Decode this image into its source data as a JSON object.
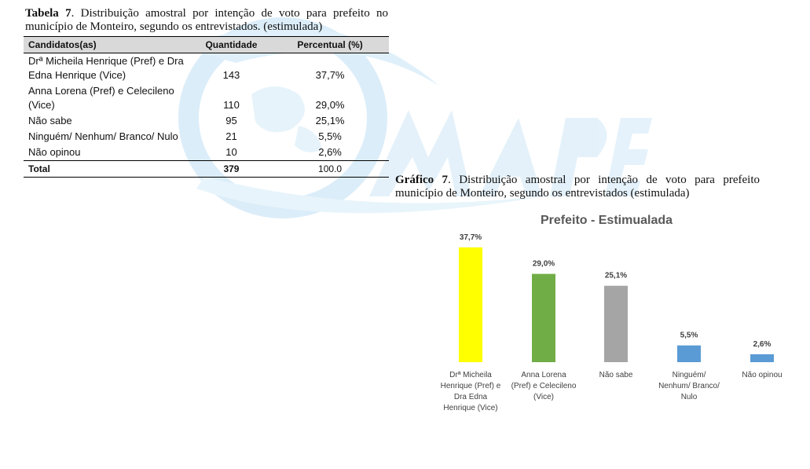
{
  "table": {
    "caption_bold": "Tabela 7",
    "caption_text": ". Distribuição amostral por intenção de voto para prefeito no município de Monteiro, segundo os entrevistados. (estimulada)",
    "headers": [
      "Candidatos(as)",
      "Quantidade",
      "Percentual (%)"
    ],
    "rows": [
      {
        "candidate": [
          "Drª Micheila Henrique (Pref) e Dra",
          "Edna Henrique (Vice)"
        ],
        "quantity": "143",
        "percent": "37,7%"
      },
      {
        "candidate": [
          "Anna Lorena (Pref) e Celecileno",
          "(Vice)"
        ],
        "quantity": "110",
        "percent": "29,0%"
      },
      {
        "candidate": [
          "Não sabe"
        ],
        "quantity": "95",
        "percent": "25,1%"
      },
      {
        "candidate": [
          "Ninguém/ Nenhum/ Branco/ Nulo"
        ],
        "quantity": "21",
        "percent": "5,5%"
      },
      {
        "candidate": [
          "Não opinou"
        ],
        "quantity": "10",
        "percent": "2,6%"
      }
    ],
    "total": {
      "label": "Total",
      "quantity": "379",
      "percent": "100.0"
    }
  },
  "chart_caption": {
    "bold": "Gráfico 7",
    "text": ". Distribuição amostral por intenção de voto para prefeito município de Monteiro, segundo os entrevistados (estimulada)"
  },
  "chart_data": {
    "type": "bar",
    "title": "Prefeito - Estimualada",
    "categories": [
      [
        "Drª Micheila",
        "Henrique (Pref) e",
        "Dra Edna",
        "Henrique (Vice)"
      ],
      [
        "Anna Lorena",
        "(Pref) e Celecileno",
        "(Vice)"
      ],
      [
        "Não sabe"
      ],
      [
        "Ninguém/",
        "Nenhum/ Branco/",
        "Nulo"
      ],
      [
        "Não opinou"
      ]
    ],
    "values": [
      37.7,
      29.0,
      25.1,
      5.5,
      2.6
    ],
    "labels": [
      "37,7%",
      "29,0%",
      "25,1%",
      "5,5%",
      "2,6%"
    ],
    "colors": [
      "#ffff00",
      "#70ad47",
      "#a5a5a5",
      "#5b9bd5",
      "#5b9bd5"
    ],
    "ylim": [
      0,
      40
    ],
    "grid": false,
    "legend": "none"
  },
  "colors": {
    "watermark": "#cfe8f7",
    "header_bg": "#d9d9d9"
  }
}
